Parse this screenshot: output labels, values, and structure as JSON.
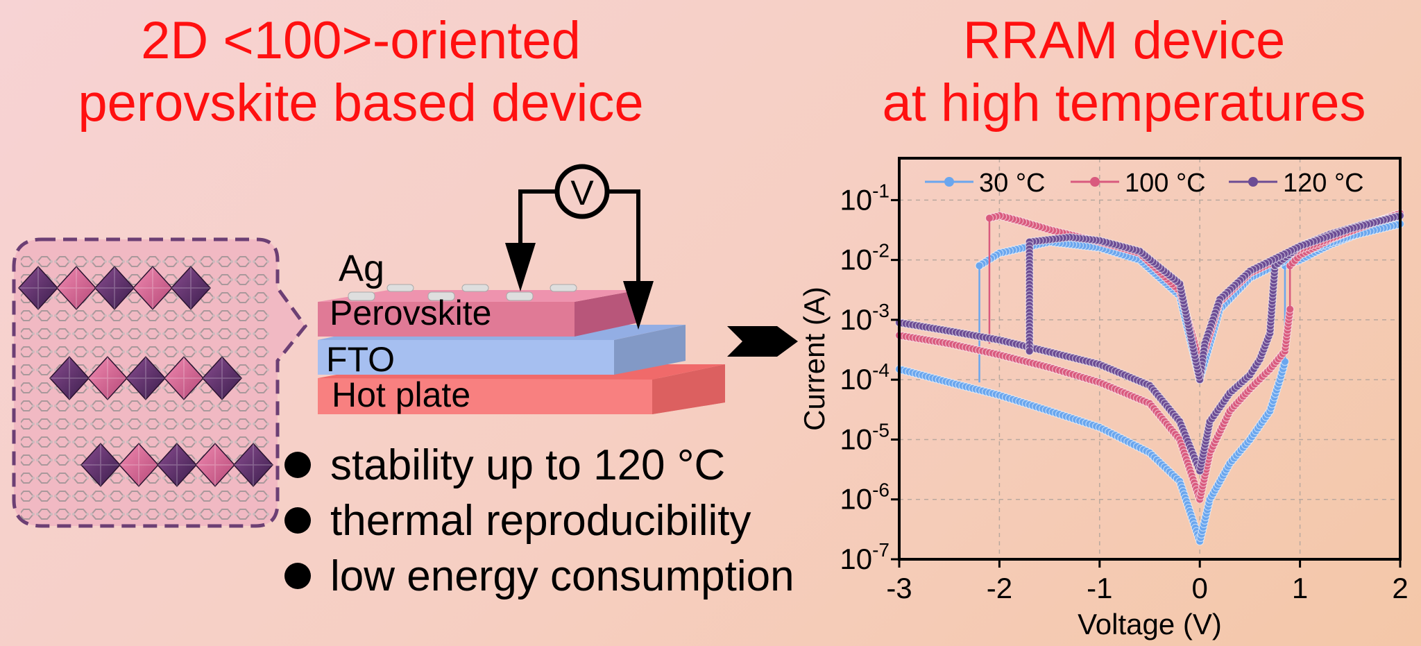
{
  "titles": {
    "left_line1": "2D <100>-oriented",
    "left_line2": "perovskite based device",
    "right_line1": "RRAM device",
    "right_line2": "at high temperatures"
  },
  "device": {
    "electrode_label": "Ag",
    "layer_top": "Perovskite",
    "layer_mid": "FTO",
    "layer_bottom": "Hot plate",
    "meter_label": "V"
  },
  "bullets": [
    "stability up to 120 °C",
    "thermal reproducibility",
    "low energy consumption"
  ],
  "colors": {
    "title": "#ff1010",
    "perovskite": "#e07a96",
    "fto": "#a6bff0",
    "hotplate": "#f88080",
    "series_30": "#6aa6ee",
    "series_100": "#d95a7e",
    "series_120": "#6c4c94"
  },
  "chart_data": {
    "type": "line",
    "xlabel": "Voltage (V)",
    "ylabel": "Current (A)",
    "xlim": [
      -3,
      2
    ],
    "ylim_log10": [
      -7,
      -0.3
    ],
    "yscale": "log",
    "grid": true,
    "legend": "top",
    "x_ticks": [
      "-3",
      "-2",
      "-1",
      "0",
      "1",
      "2"
    ],
    "y_ticks": [
      {
        "base": "10",
        "exp": "-1"
      },
      {
        "base": "10",
        "exp": "-2"
      },
      {
        "base": "10",
        "exp": "-3"
      },
      {
        "base": "10",
        "exp": "-4"
      },
      {
        "base": "10",
        "exp": "-5"
      },
      {
        "base": "10",
        "exp": "-6"
      },
      {
        "base": "10",
        "exp": "-7"
      }
    ],
    "series": [
      {
        "name": "30 °C",
        "hrs_sweep": [
          [
            -3,
            0.00015
          ],
          [
            -2.5,
            9e-05
          ],
          [
            -2,
            5.5e-05
          ],
          [
            -1.5,
            3e-05
          ],
          [
            -1,
            1.6e-05
          ],
          [
            -0.5,
            6e-06
          ],
          [
            -0.2,
            2e-06
          ],
          [
            0,
            2e-07
          ],
          [
            0.1,
            1e-06
          ],
          [
            0.3,
            4e-06
          ],
          [
            0.5,
            1e-05
          ],
          [
            0.7,
            3e-05
          ],
          [
            0.8,
            0.0001
          ],
          [
            0.85,
            0.0002
          ]
        ],
        "lrs_sweep": [
          [
            0.85,
            0.008
          ],
          [
            1,
            0.01
          ],
          [
            1.3,
            0.018
          ],
          [
            1.6,
            0.028
          ],
          [
            2,
            0.04
          ],
          [
            1.5,
            0.025
          ],
          [
            1,
            0.013
          ],
          [
            0.5,
            0.005
          ],
          [
            0.2,
            0.0015
          ],
          [
            0.05,
            0.0002
          ],
          [
            0,
            0.0001
          ],
          [
            -0.2,
            0.0025
          ],
          [
            -0.6,
            0.01
          ],
          [
            -1,
            0.016
          ],
          [
            -1.5,
            0.02
          ],
          [
            -2,
            0.013
          ],
          [
            -2.2,
            0.008
          ]
        ],
        "switch_v": [
          0.85,
          -2.2
        ]
      },
      {
        "name": "100 °C",
        "hrs_sweep": [
          [
            -3,
            0.00055
          ],
          [
            -2.5,
            0.0004
          ],
          [
            -2,
            0.00026
          ],
          [
            -1.5,
            0.00016
          ],
          [
            -1,
            9e-05
          ],
          [
            -0.5,
            4e-05
          ],
          [
            -0.2,
            1e-05
          ],
          [
            0,
            1e-06
          ],
          [
            0.1,
            6e-06
          ],
          [
            0.3,
            3e-05
          ],
          [
            0.5,
            7e-05
          ],
          [
            0.7,
            0.00015
          ],
          [
            0.85,
            0.0003
          ],
          [
            0.9,
            0.0015
          ]
        ],
        "lrs_sweep": [
          [
            0.9,
            0.008
          ],
          [
            1,
            0.012
          ],
          [
            1.3,
            0.022
          ],
          [
            1.6,
            0.035
          ],
          [
            2,
            0.06
          ],
          [
            1.5,
            0.03
          ],
          [
            1,
            0.015
          ],
          [
            0.5,
            0.006
          ],
          [
            0.2,
            0.002
          ],
          [
            0.05,
            0.0003
          ],
          [
            0,
            0.0002
          ],
          [
            -0.2,
            0.003
          ],
          [
            -0.6,
            0.013
          ],
          [
            -1,
            0.02
          ],
          [
            -1.5,
            0.032
          ],
          [
            -1.8,
            0.045
          ],
          [
            -2,
            0.055
          ],
          [
            -2.1,
            0.05
          ]
        ],
        "switch_v": [
          0.9,
          -2.1
        ]
      },
      {
        "name": "120 °C",
        "hrs_sweep": [
          [
            -3,
            0.0009
          ],
          [
            -2.5,
            0.00065
          ],
          [
            -2,
            0.00046
          ],
          [
            -1.5,
            0.00029
          ],
          [
            -1,
            0.00018
          ],
          [
            -0.5,
            8e-05
          ],
          [
            -0.2,
            2e-05
          ],
          [
            0,
            3e-06
          ],
          [
            0.1,
            2e-05
          ],
          [
            0.3,
            6e-05
          ],
          [
            0.5,
            0.00012
          ],
          [
            0.6,
            0.00022
          ],
          [
            0.7,
            0.0006
          ],
          [
            0.75,
            0.008
          ]
        ],
        "lrs_sweep": [
          [
            0.75,
            0.008
          ],
          [
            1,
            0.017
          ],
          [
            1.3,
            0.027
          ],
          [
            1.6,
            0.038
          ],
          [
            2,
            0.055
          ],
          [
            1.5,
            0.033
          ],
          [
            1,
            0.017
          ],
          [
            0.5,
            0.0065
          ],
          [
            0.2,
            0.0022
          ],
          [
            0.05,
            0.0004
          ],
          [
            0,
            0.0001
          ],
          [
            -0.2,
            0.004
          ],
          [
            -0.6,
            0.014
          ],
          [
            -1,
            0.021
          ],
          [
            -1.3,
            0.024
          ],
          [
            -1.7,
            0.02
          ],
          [
            -1.7,
            0.0003
          ]
        ],
        "switch_v": [
          0.75,
          -1.7
        ]
      }
    ]
  }
}
